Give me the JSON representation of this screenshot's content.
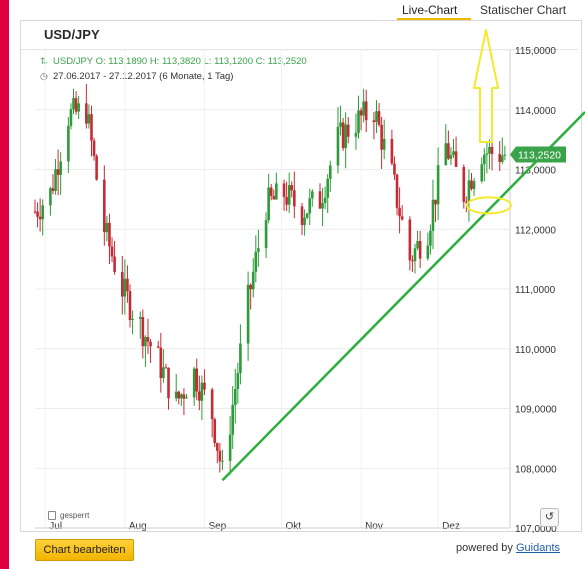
{
  "tabs": {
    "live": "Live-Chart",
    "static": "Statischer Chart"
  },
  "chart_title": "USD/JPY",
  "ohlc_line": "USD/JPY  O: 113,1890  H: 113,3820  L: 113,1200  C: 113,2520",
  "range_line": "27.06.2017 - 27.12.2017  (6 Monate, 1 Tag)",
  "locked_label": "gesperrt",
  "edit_button": "Chart bearbeiten",
  "powered_by": "powered by",
  "powered_brand": "Guidants",
  "reset_icon": "↺",
  "colors": {
    "up": "#2e9b3a",
    "down": "#c62b34",
    "trend": "#2eae3c",
    "annotation": "#f3ea2e",
    "price_tag": "#3aa34a"
  },
  "chart_data": {
    "type": "candlestick",
    "title": "USD/JPY",
    "x_labels": [
      "Jul",
      "Aug",
      "Sep",
      "Okt",
      "Nov",
      "Dez"
    ],
    "y_ticks": [
      "107,0000",
      "108,0000",
      "109,0000",
      "110,0000",
      "111,0000",
      "112,0000",
      "113,0000",
      "114,0000",
      "115,0000"
    ],
    "ylim": [
      107.0,
      115.0
    ],
    "last_price": "113,2520",
    "close_path": [
      {
        "date": "2017-06-27",
        "close": 112.3
      },
      {
        "date": "2017-07-03",
        "close": 112.6
      },
      {
        "date": "2017-07-10",
        "close": 113.9
      },
      {
        "date": "2017-07-17",
        "close": 114.0
      },
      {
        "date": "2017-07-24",
        "close": 112.0
      },
      {
        "date": "2017-07-31",
        "close": 111.0
      },
      {
        "date": "2017-08-07",
        "close": 110.4
      },
      {
        "date": "2017-08-14",
        "close": 109.8
      },
      {
        "date": "2017-08-21",
        "close": 109.1
      },
      {
        "date": "2017-08-28",
        "close": 109.6
      },
      {
        "date": "2017-09-04",
        "close": 108.9
      },
      {
        "date": "2017-09-08",
        "close": 107.9
      },
      {
        "date": "2017-09-18",
        "close": 110.8
      },
      {
        "date": "2017-09-25",
        "close": 112.4
      },
      {
        "date": "2017-10-02",
        "close": 112.6
      },
      {
        "date": "2017-10-09",
        "close": 112.3
      },
      {
        "date": "2017-10-16",
        "close": 112.5
      },
      {
        "date": "2017-10-23",
        "close": 113.5
      },
      {
        "date": "2017-10-30",
        "close": 113.8
      },
      {
        "date": "2017-11-06",
        "close": 114.0
      },
      {
        "date": "2017-11-13",
        "close": 112.9
      },
      {
        "date": "2017-11-20",
        "close": 111.5
      },
      {
        "date": "2017-11-27",
        "close": 112.0
      },
      {
        "date": "2017-12-04",
        "close": 113.4
      },
      {
        "date": "2017-12-11",
        "close": 112.6
      },
      {
        "date": "2017-12-18",
        "close": 113.3
      },
      {
        "date": "2017-12-27",
        "close": 113.25
      }
    ],
    "annotations": [
      {
        "type": "trend_line",
        "from": {
          "date": "2017-09-08",
          "price": 107.8
        },
        "to": {
          "date": "2017-12-27",
          "price": 112.6
        }
      },
      {
        "type": "ellipse",
        "date": "2017-12-20",
        "price": 112.4
      },
      {
        "type": "arrow",
        "direction": "up",
        "points_to": "Statischer Chart"
      }
    ],
    "grid": true
  }
}
